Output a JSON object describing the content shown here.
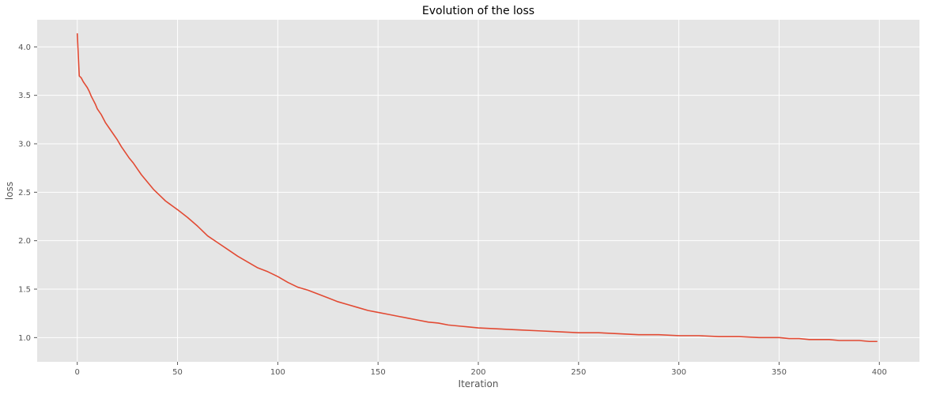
{
  "chart_data": {
    "type": "line",
    "title": "Evolution of the loss",
    "xlabel": "Iteration",
    "ylabel": "loss",
    "xlim": [
      -20,
      420
    ],
    "ylim": [
      0.75,
      4.28
    ],
    "xticks": [
      0,
      50,
      100,
      150,
      200,
      250,
      300,
      350,
      400
    ],
    "yticks": [
      1.0,
      1.5,
      2.0,
      2.5,
      3.0,
      3.5,
      4.0
    ],
    "ytick_labels": [
      "1.0",
      "1.5",
      "2.0",
      "2.5",
      "3.0",
      "3.5",
      "4.0"
    ],
    "grid": true,
    "legend": "none",
    "series": [
      {
        "color": "#e24a33",
        "x": [
          0,
          1,
          2,
          3,
          4,
          5,
          6,
          7,
          8,
          9,
          10,
          12,
          14,
          16,
          18,
          20,
          22,
          24,
          26,
          28,
          30,
          32,
          34,
          36,
          38,
          40,
          42,
          44,
          46,
          48,
          50,
          55,
          60,
          65,
          70,
          75,
          80,
          85,
          90,
          95,
          100,
          105,
          110,
          115,
          120,
          125,
          130,
          135,
          140,
          145,
          150,
          155,
          160,
          165,
          170,
          175,
          180,
          185,
          190,
          195,
          200,
          210,
          220,
          230,
          240,
          250,
          260,
          270,
          280,
          290,
          300,
          310,
          320,
          330,
          340,
          350,
          355,
          360,
          365,
          370,
          375,
          380,
          385,
          390,
          395,
          399
        ],
        "values": [
          4.14,
          3.7,
          3.68,
          3.64,
          3.61,
          3.58,
          3.54,
          3.49,
          3.45,
          3.41,
          3.36,
          3.3,
          3.22,
          3.16,
          3.1,
          3.04,
          2.97,
          2.91,
          2.85,
          2.8,
          2.74,
          2.68,
          2.63,
          2.58,
          2.53,
          2.49,
          2.45,
          2.41,
          2.38,
          2.35,
          2.32,
          2.24,
          2.15,
          2.05,
          1.98,
          1.91,
          1.84,
          1.78,
          1.72,
          1.68,
          1.63,
          1.57,
          1.52,
          1.49,
          1.45,
          1.41,
          1.37,
          1.34,
          1.31,
          1.28,
          1.26,
          1.24,
          1.22,
          1.2,
          1.18,
          1.16,
          1.15,
          1.13,
          1.12,
          1.11,
          1.1,
          1.09,
          1.08,
          1.07,
          1.06,
          1.05,
          1.05,
          1.04,
          1.03,
          1.03,
          1.02,
          1.02,
          1.01,
          1.01,
          1.0,
          1.0,
          0.99,
          0.99,
          0.98,
          0.98,
          0.98,
          0.97,
          0.97,
          0.97,
          0.96,
          0.96
        ]
      }
    ]
  }
}
